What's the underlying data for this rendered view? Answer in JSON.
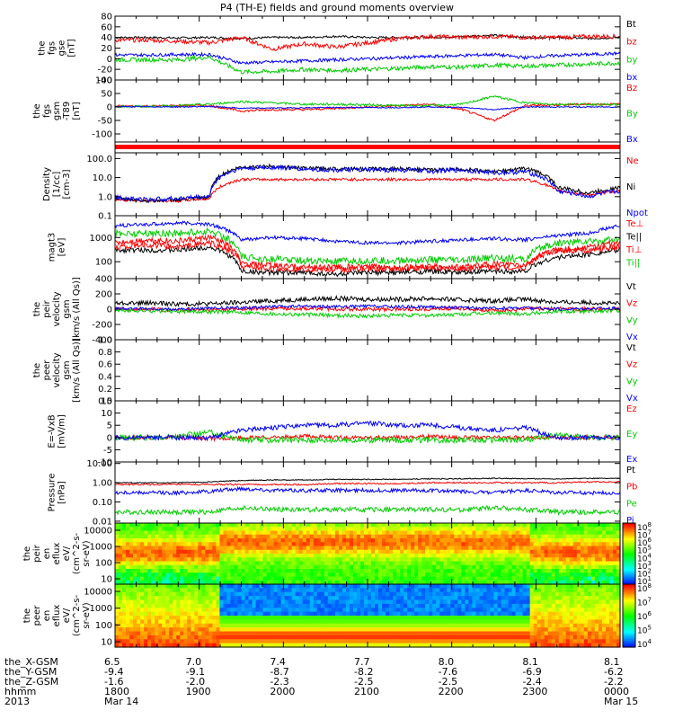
{
  "title": "P4 (TH-E) fields and ground moments overview",
  "chart_data": {
    "type": "line",
    "x_axis": {
      "unit": "hhmm UT",
      "ticks": [
        "1800",
        "1900",
        "2000",
        "2100",
        "2200",
        "2300",
        "0000"
      ],
      "minor_ticks_per_major": 4
    },
    "panels": [
      {
        "kind": "line",
        "ylabel": [
          "the",
          "fgs",
          "gse",
          "[nT]"
        ],
        "ylim": [
          -40,
          80
        ],
        "yticks": [
          "80",
          "60",
          "40",
          "20",
          "0",
          "-20",
          "-40"
        ],
        "series": [
          {
            "name": "Bt",
            "color": "#000000",
            "base": [
              40,
              40,
              39,
              40,
              38,
              40,
              40,
              42,
              40,
              40,
              40,
              42,
              44,
              40,
              40,
              38,
              40
            ],
            "noise": 2
          },
          {
            "name": "bz",
            "color": "#ff0000",
            "base": [
              35,
              35,
              33,
              30,
              40,
              18,
              28,
              22,
              30,
              38,
              42,
              40,
              42,
              40,
              40,
              42,
              42
            ],
            "noise": 4
          },
          {
            "name": "by",
            "color": "#00cc00",
            "base": [
              -2,
              -2,
              -2,
              3,
              -25,
              -24,
              -20,
              -22,
              -20,
              -18,
              -15,
              -16,
              -12,
              -14,
              -12,
              -10,
              -8
            ],
            "noise": 4
          },
          {
            "name": "bx",
            "color": "#0000ff",
            "base": [
              7,
              7,
              8,
              8,
              -8,
              -6,
              -4,
              -2,
              0,
              2,
              4,
              6,
              8,
              2,
              6,
              8,
              10
            ],
            "noise": 3
          }
        ]
      },
      {
        "kind": "line",
        "ylabel": [
          "the",
          "fgs",
          "gsm",
          "-T89",
          "[nT]"
        ],
        "ylim": [
          -130,
          100
        ],
        "yticks": [
          "100",
          "50",
          "0",
          "-50",
          "-100"
        ],
        "series": [
          {
            "name": "Bz",
            "color": "#ff0000",
            "base": [
              3,
              3,
              5,
              5,
              -15,
              -10,
              -10,
              -5,
              0,
              5,
              10,
              -10,
              -50,
              5,
              8,
              10,
              10
            ],
            "noise": 4
          },
          {
            "name": "By",
            "color": "#00cc00",
            "base": [
              2,
              2,
              5,
              10,
              20,
              15,
              10,
              10,
              8,
              5,
              5,
              10,
              40,
              15,
              10,
              10,
              8
            ],
            "noise": 4
          },
          {
            "name": "Bx",
            "color": "#0000ff",
            "base": [
              1,
              1,
              0,
              2,
              -5,
              -4,
              -3,
              -2,
              -2,
              -2,
              0,
              -2,
              -10,
              0,
              0,
              0,
              0
            ],
            "noise": 2
          }
        ]
      },
      {
        "kind": "bar"
      },
      {
        "kind": "line",
        "log": true,
        "ylabel": [
          "Density",
          "[1/cc]",
          "[cm-3]"
        ],
        "ylim": [
          0.1,
          200
        ],
        "yticks": [
          "100.0",
          "10.0",
          "1.0",
          "0.1"
        ],
        "tickvals": [
          100,
          10,
          1,
          0.1
        ],
        "series": [
          {
            "name": "Ne",
            "color": "#ff0000",
            "base": [
              0.7,
              0.6,
              0.6,
              0.8,
              8,
              8,
              8,
              8,
              8,
              8,
              8,
              8,
              8,
              8,
              2,
              1.2,
              2
            ],
            "noise": 0.15
          },
          {
            "name": "Ni",
            "color": "#000000",
            "base": [
              0.8,
              0.6,
              0.7,
              0.9,
              35,
              40,
              30,
              30,
              28,
              30,
              25,
              28,
              20,
              30,
              3,
              1.5,
              3
            ],
            "noise": 0.2
          },
          {
            "name": "Npot",
            "color": "#0000ff",
            "base": [
              0.9,
              0.7,
              0.8,
              1.0,
              30,
              35,
              28,
              25,
              25,
              25,
              22,
              25,
              18,
              20,
              2,
              1.0,
              2
            ],
            "noise": 0.25
          }
        ]
      },
      {
        "kind": "line",
        "log": true,
        "ylabel": [
          "magt3",
          "[eV]"
        ],
        "ylim": [
          20,
          8000
        ],
        "yticks": [
          "1000",
          "100"
        ],
        "tickvals": [
          1000,
          100
        ],
        "series": [
          {
            "name": "Te⊥",
            "color": "#ff0000",
            "base": [
              600,
              800,
              700,
              1000,
              60,
              50,
              50,
              45,
              50,
              50,
              55,
              50,
              60,
              55,
              300,
              400,
              600
            ],
            "noise": 0.25
          },
          {
            "name": "Te||",
            "color": "#000000",
            "base": [
              300,
              300,
              300,
              400,
              40,
              35,
              35,
              30,
              35,
              35,
              40,
              35,
              40,
              40,
              150,
              200,
              300
            ],
            "noise": 0.2
          },
          {
            "name": "Ti⊥",
            "color": "#ff0000",
            "base": [
              400,
              500,
              400,
              600,
              80,
              70,
              60,
              60,
              60,
              60,
              60,
              60,
              80,
              70,
              300,
              300,
              400
            ],
            "noise": 0.25
          },
          {
            "name": "Ti||",
            "color": "#00cc00",
            "base": [
              1500,
              1500,
              1500,
              1800,
              150,
              130,
              110,
              100,
              110,
              110,
              120,
              110,
              150,
              120,
              600,
              700,
              800
            ],
            "noise": 0.3
          },
          {
            "name": "",
            "color": "#0000ff",
            "base": [
              3000,
              3500,
              4000,
              3500,
              800,
              1000,
              900,
              700,
              600,
              600,
              700,
              800,
              900,
              800,
              1200,
              1500,
              3000
            ],
            "noise": 0.15
          }
        ]
      },
      {
        "kind": "line",
        "ylabel": [
          "the",
          "peir",
          "velocity",
          "gsm",
          "[km/s (All Qs)]"
        ],
        "ylim": [
          -400,
          400
        ],
        "yticks": [
          "400",
          "200",
          "0",
          "-200",
          "-400"
        ],
        "series": [
          {
            "name": "Vt",
            "color": "#000000",
            "base": [
              80,
              80,
              70,
              70,
              90,
              110,
              130,
              140,
              130,
              130,
              140,
              120,
              110,
              130,
              90,
              90,
              70
            ],
            "noise": 30
          },
          {
            "name": "Vz",
            "color": "#ff0000",
            "base": [
              0,
              0,
              -10,
              -10,
              0,
              10,
              10,
              5,
              0,
              0,
              5,
              10,
              -20,
              0,
              10,
              0,
              0
            ],
            "noise": 25
          },
          {
            "name": "Vy",
            "color": "#00cc00",
            "base": [
              -20,
              -20,
              -30,
              -30,
              -40,
              -60,
              -70,
              -80,
              -90,
              -80,
              -80,
              -70,
              -50,
              -60,
              -30,
              -30,
              -20
            ],
            "noise": 25
          },
          {
            "name": "Vx",
            "color": "#0000ff",
            "base": [
              10,
              10,
              0,
              10,
              20,
              30,
              40,
              30,
              40,
              30,
              30,
              20,
              10,
              20,
              0,
              10,
              10
            ],
            "noise": 20
          }
        ]
      },
      {
        "kind": "empty",
        "ylabel": [
          "the",
          "peer",
          "velocity",
          "gsm",
          "[km/s (All Qs)]"
        ],
        "ylim": [
          0,
          1
        ],
        "yticks": [
          "1.0",
          "0.8",
          "0.6",
          "0.4",
          "0.2",
          "0.0"
        ],
        "legend": [
          {
            "name": "Vt",
            "color": "#000000"
          },
          {
            "name": "Vz",
            "color": "#ff0000"
          },
          {
            "name": "Vy",
            "color": "#00cc00"
          },
          {
            "name": "Vx",
            "color": "#0000ff"
          }
        ]
      },
      {
        "kind": "line",
        "ylabel": [
          "E=-VxB",
          "[mV/m]"
        ],
        "ylim": [
          -10,
          15
        ],
        "yticks": [
          "15",
          "10",
          "5",
          "0",
          "-5",
          "-10"
        ],
        "series": [
          {
            "name": "Ez",
            "color": "#ff0000",
            "base": [
              0,
              0,
              0,
              -0.5,
              0,
              0,
              0.5,
              0,
              0,
              0,
              0.5,
              0,
              0,
              0,
              0,
              0,
              0
            ],
            "noise": 0.8
          },
          {
            "name": "Ey",
            "color": "#00cc00",
            "base": [
              0,
              0,
              0.5,
              2,
              -1,
              -1,
              -1,
              -1,
              -1,
              -1,
              -1,
              -1,
              -1,
              -1,
              1,
              0,
              0
            ],
            "noise": 1.2
          },
          {
            "name": "Ex",
            "color": "#0000ff",
            "base": [
              0,
              0,
              0,
              0,
              3,
              4,
              5,
              5,
              6,
              5,
              5,
              4,
              3,
              4,
              0,
              0,
              0
            ],
            "noise": 1.0
          }
        ]
      },
      {
        "kind": "line",
        "log": true,
        "ylabel": [
          "Pressure",
          "[nPa]"
        ],
        "ylim": [
          0.008,
          12
        ],
        "yticks": [
          "10.00",
          "1.00",
          "0.10",
          "0.01"
        ],
        "tickvals": [
          10,
          1,
          0.1,
          0.01
        ],
        "series": [
          {
            "name": "Pt",
            "color": "#000000",
            "base": [
              1,
              1,
              1,
              1.1,
              1.3,
              1.4,
              1.4,
              1.5,
              1.5,
              1.5,
              1.6,
              1.6,
              1.7,
              1.6,
              1.6,
              1.7,
              1.7
            ],
            "noise": 0.05
          },
          {
            "name": "Pb",
            "color": "#ff0000",
            "base": [
              0.8,
              0.8,
              0.8,
              0.8,
              0.8,
              0.8,
              0.8,
              0.9,
              0.9,
              0.9,
              1.0,
              1.0,
              1.0,
              1.0,
              1.0,
              1.1,
              1.1
            ],
            "noise": 0.08
          },
          {
            "name": "Pe",
            "color": "#00cc00",
            "base": [
              0.03,
              0.03,
              0.03,
              0.03,
              0.05,
              0.04,
              0.04,
              0.04,
              0.04,
              0.04,
              0.04,
              0.04,
              0.05,
              0.04,
              0.03,
              0.03,
              0.03
            ],
            "noise": 0.25
          },
          {
            "name": "Pi",
            "color": "#0000ff",
            "base": [
              0.3,
              0.3,
              0.3,
              0.35,
              0.5,
              0.4,
              0.4,
              0.4,
              0.4,
              0.4,
              0.4,
              0.35,
              0.3,
              0.4,
              0.3,
              0.3,
              0.3
            ],
            "noise": 0.2
          }
        ]
      },
      {
        "kind": "heatmap",
        "ylabel": [
          "the",
          "peir",
          "en",
          "eflux",
          "eV/",
          "(cm^2-s-",
          "sr-eV)"
        ],
        "yticks": [
          "10000",
          "1000",
          "100",
          "10"
        ],
        "cb_ticks": [
          "10^8",
          "10^7",
          "10^6",
          "10^5",
          "10^4",
          "10^3",
          "10^2",
          "10^1"
        ]
      },
      {
        "kind": "heatmap",
        "ylabel": [
          "the",
          "peer",
          "en",
          "eflux",
          "eV/",
          "(cm^2-s-",
          "sr-eV)"
        ],
        "yticks": [
          "10000",
          "1000",
          "100",
          "10"
        ],
        "cb_ticks": [
          "10^8",
          "10^7",
          "10^6",
          "10^5",
          "10^4"
        ]
      }
    ],
    "footer": {
      "rows": [
        {
          "label": "the_X-GSM",
          "values": [
            "6.5",
            "7.0",
            "7.4",
            "7.7",
            "8.0",
            "8.1",
            "8.1"
          ]
        },
        {
          "label": "the_Y-GSM",
          "values": [
            "-9.4",
            "-9.1",
            "-8.7",
            "-8.2",
            "-7.6",
            "-6.9",
            "-6.2"
          ]
        },
        {
          "label": "the_Z-GSM",
          "values": [
            "-1.6",
            "-2.0",
            "-2.3",
            "-2.5",
            "-2.5",
            "-2.4",
            "-2.2"
          ]
        },
        {
          "label": "hhmm",
          "values": [
            "1800",
            "1900",
            "2000",
            "2100",
            "2200",
            "2300",
            "0000"
          ]
        },
        {
          "label": "2013",
          "values": [
            "Mar 14",
            "",
            "",
            "",
            "",
            "",
            "Mar 15"
          ]
        }
      ]
    }
  }
}
